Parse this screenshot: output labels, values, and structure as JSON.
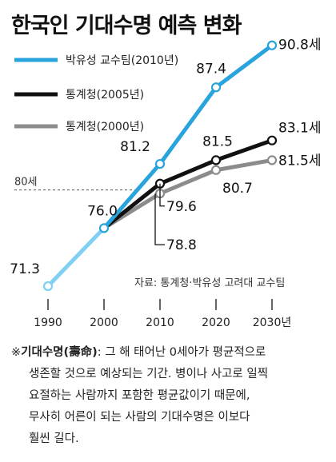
{
  "title": "한국인 기대수명 예측 변화",
  "chart_data": {
    "type": "line",
    "x": [
      1990,
      2000,
      2010,
      2020,
      2030
    ],
    "x_tick_labels": [
      "1990",
      "2000",
      "2010",
      "2020",
      "2030년"
    ],
    "ylim": [
      68,
      93
    ],
    "series": [
      {
        "name": "박유성 교수팀(2010년)",
        "color": "#29a3dc",
        "x": [
          1990,
          2000,
          2010,
          2020,
          2030
        ],
        "values": [
          71.3,
          76.0,
          81.2,
          87.4,
          90.8
        ],
        "labels": [
          "71.3",
          "76.0",
          "81.2",
          "87.4",
          "90.8세"
        ]
      },
      {
        "name": "통계청(2005년)",
        "color": "#111111",
        "x": [
          2000,
          2010,
          2020,
          2030
        ],
        "values": [
          76.0,
          79.6,
          81.5,
          83.1
        ],
        "labels": [
          "",
          "79.6",
          "81.5",
          "83.1세"
        ]
      },
      {
        "name": "통계청(2000년)",
        "color": "#8c8c8c",
        "x": [
          2000,
          2010,
          2020,
          2030
        ],
        "values": [
          76.0,
          78.8,
          80.7,
          81.5
        ],
        "labels": [
          "",
          "78.8",
          "80.7",
          "81.5세"
        ]
      }
    ],
    "reference_line": {
      "value": 80,
      "label": "80세"
    },
    "source": "자료: 통계청·박유성 고려대 교수팀"
  },
  "footnote": {
    "term": "기대수명(壽命)",
    "prefix": "※",
    "line1_rest": ": 그 해 태어난 0세아가 평균적으로",
    "line2": "생존할 것으로 예상되는 기간. 병이나 사고로 일찍",
    "line3": "요절하는 사람까지 포함한 평균값이기 때문에,",
    "line4": "무사히 어른이 되는 사람의 기대수명은 이보다",
    "line5": "훨씬 길다."
  }
}
